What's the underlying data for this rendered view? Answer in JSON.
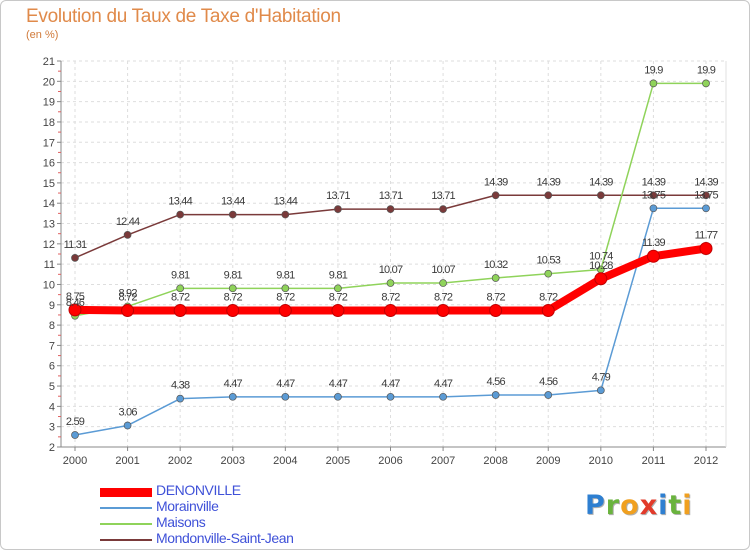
{
  "header": {
    "title": "Evolution du Taux de Taxe d'Habitation",
    "subtitle": "(en %)"
  },
  "chart_data": {
    "type": "line",
    "title": "Evolution du Taux de Taxe d'Habitation",
    "ylabel": "(en %)",
    "xlabel": "",
    "x": [
      2000,
      2001,
      2002,
      2003,
      2004,
      2005,
      2006,
      2007,
      2008,
      2009,
      2010,
      2011,
      2012
    ],
    "xlim": [
      2000,
      2012
    ],
    "ylim": [
      2,
      21
    ],
    "yticks": [
      2,
      3,
      4,
      5,
      6,
      7,
      8,
      9,
      10,
      11,
      12,
      13,
      14,
      15,
      16,
      17,
      18,
      19,
      20,
      21
    ],
    "grid": true,
    "legend_position": "bottom-left",
    "series": [
      {
        "name": "Mondonville-Saint-Jean",
        "color": "#7a3a3a",
        "values": [
          11.31,
          12.44,
          13.44,
          13.44,
          13.44,
          13.71,
          13.71,
          13.71,
          14.39,
          14.39,
          14.39,
          14.39,
          14.39
        ],
        "labels": [
          "11.31",
          "12.44",
          "13.44",
          "13.44",
          "13.44",
          "13.71",
          "13.71",
          "13.71",
          "14.39",
          "14.39",
          "14.39",
          "14.39",
          "14.39"
        ]
      },
      {
        "name": "Maisons",
        "color": "#8fd35a",
        "values": [
          8.46,
          8.92,
          9.81,
          9.81,
          9.81,
          9.81,
          10.07,
          10.07,
          10.32,
          10.53,
          10.74,
          19.9,
          19.9
        ],
        "labels": [
          "8.46",
          "8.92",
          "9.81",
          "9.81",
          "9.81",
          "9.81",
          "10.07",
          "10.07",
          "10.32",
          "10.53",
          "10.74",
          "19.9",
          "19.9"
        ]
      },
      {
        "name": "Morainville",
        "color": "#5b9bd5",
        "values": [
          2.59,
          3.06,
          4.38,
          4.47,
          4.47,
          4.47,
          4.47,
          4.47,
          4.56,
          4.56,
          4.79,
          13.75,
          13.75
        ],
        "labels": [
          "2.59",
          "3.06",
          "4.38",
          "4.47",
          "4.47",
          "4.47",
          "4.47",
          "4.47",
          "4.56",
          "4.56",
          "4.79",
          "13.75",
          "13.75"
        ]
      },
      {
        "name": "DENONVILLE",
        "color": "#ff0000",
        "values": [
          8.75,
          8.72,
          8.72,
          8.72,
          8.72,
          8.72,
          8.72,
          8.72,
          8.72,
          8.72,
          10.28,
          11.39,
          11.77
        ],
        "labels": [
          "8.75",
          "8.72",
          "8.72",
          "8.72",
          "8.72",
          "8.72",
          "8.72",
          "8.72",
          "8.72",
          "8.72",
          "10.28",
          "11.39",
          "11.77"
        ]
      }
    ]
  },
  "legend": {
    "items": [
      {
        "label": "DENONVILLE",
        "color": "#ff0000"
      },
      {
        "label": "Morainville",
        "color": "#5b9bd5"
      },
      {
        "label": "Maisons",
        "color": "#8fd35a"
      },
      {
        "label": "Mondonville-Saint-Jean",
        "color": "#7a3a3a"
      }
    ]
  },
  "logo": {
    "letters": [
      "P",
      "r",
      "o",
      "x",
      "i",
      "t",
      "i"
    ],
    "colors": [
      "#2e7fd1",
      "#6ab33e",
      "#f0a020",
      "#e23a2a",
      "#2e7fd1",
      "#6ab33e",
      "#f0a020"
    ]
  }
}
